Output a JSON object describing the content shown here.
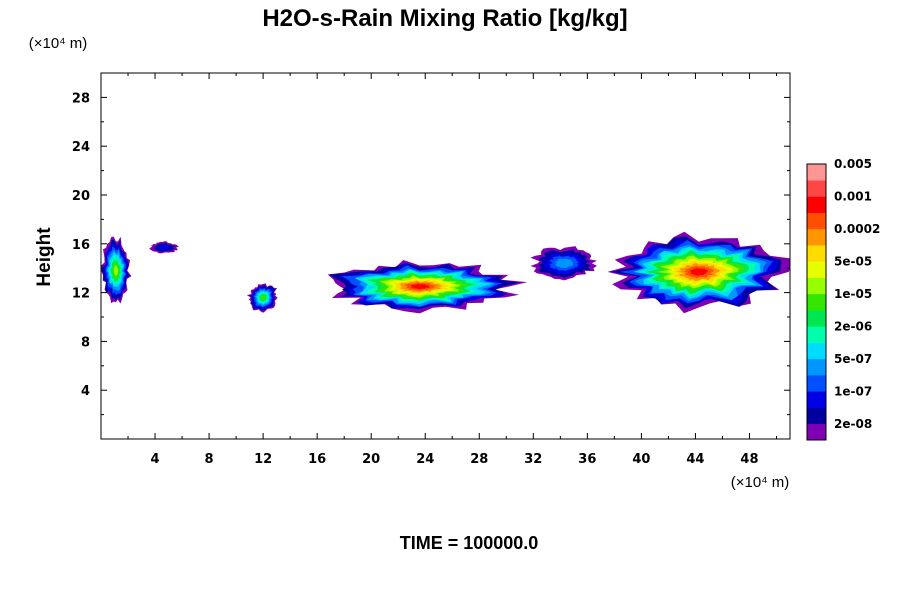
{
  "chart_data": {
    "type": "heatmap",
    "title": "H2O-s-Rain Mixing Ratio [kg/kg]",
    "ylabel": "Height",
    "x_unit_label": "(×10⁴ m)",
    "y_unit_label": "(×10⁴ m)",
    "time_label": "TIME = 100000.0",
    "xlim": [
      0,
      51
    ],
    "ylim": [
      0,
      30
    ],
    "x_ticks": [
      4,
      8,
      12,
      16,
      20,
      24,
      28,
      32,
      36,
      40,
      44,
      48
    ],
    "y_ticks": [
      4,
      8,
      12,
      16,
      20,
      24,
      28
    ],
    "x_tick_labels": [
      "4",
      "8",
      "12",
      "16",
      "20",
      "24",
      "28",
      "32",
      "36",
      "40",
      "44",
      "48"
    ],
    "y_tick_labels": [
      "4",
      "8",
      "12",
      "16",
      "20",
      "24",
      "28"
    ],
    "grid": false,
    "colorbar": {
      "position": "right",
      "colors": [
        "#7f00b2",
        "#0000a0",
        "#0000e6",
        "#0050ff",
        "#0096ff",
        "#00dcff",
        "#00ffaa",
        "#00e650",
        "#32e600",
        "#96ff00",
        "#e6ff00",
        "#ffdc00",
        "#ff9600",
        "#ff5000",
        "#ff0000",
        "#ff4646",
        "#ff9696"
      ],
      "labels": [
        "2e-08",
        "1e-07",
        "5e-07",
        "2e-06",
        "1e-05",
        "5e-05",
        "0.0002",
        "0.001",
        "0.005"
      ]
    },
    "cloud_regions": [
      {
        "x": [
          0,
          2.2
        ],
        "y": [
          11,
          16.6
        ],
        "peak_level": 9
      },
      {
        "x": [
          3.6,
          5.8
        ],
        "y": [
          15.2,
          16.2
        ],
        "peak_level": 2
      },
      {
        "x": [
          10.8,
          13.2
        ],
        "y": [
          10.4,
          12.8
        ],
        "peak_level": 8
      },
      {
        "x": [
          16.2,
          31
        ],
        "y": [
          10.4,
          14.6
        ],
        "peak_level": 14
      },
      {
        "x": [
          31.8,
          36.8
        ],
        "y": [
          13,
          15.8
        ],
        "peak_level": 4
      },
      {
        "x": [
          37.5,
          51
        ],
        "y": [
          10.4,
          17
        ],
        "peak_level": 14
      }
    ]
  }
}
